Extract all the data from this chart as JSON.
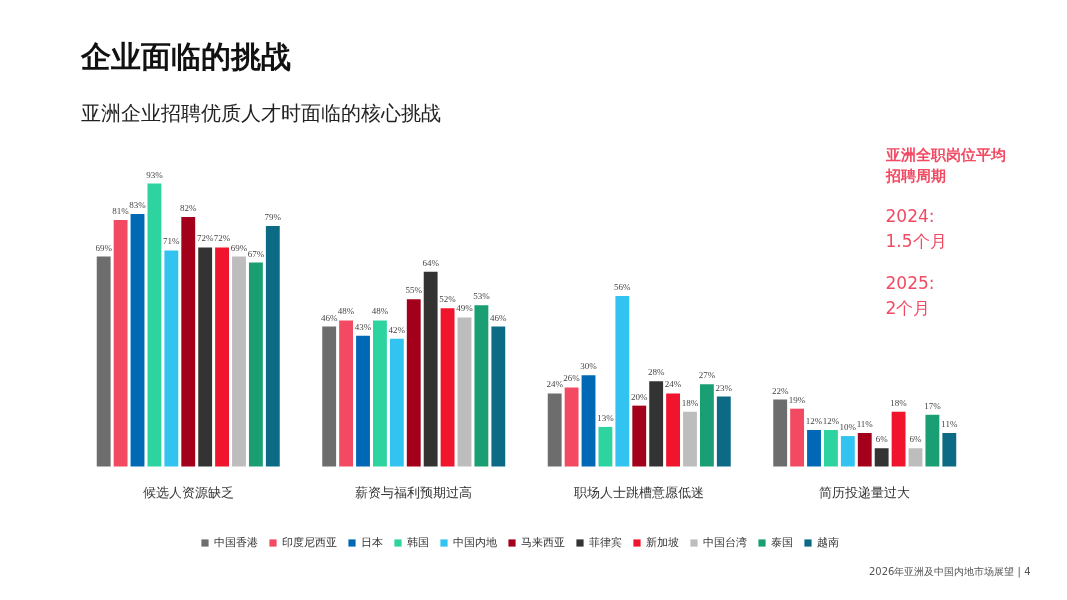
{
  "chart_data": {
    "type": "bar",
    "title": "企业面临的挑战",
    "subtitle": "亚洲企业招聘优质人才时面临的核心挑战",
    "categories": [
      "候选人资源缺乏",
      "薪资与福利预期过高",
      "职场人士跳槽意愿低迷",
      "简历投递量过大"
    ],
    "tick_labels": "x",
    "legend": "bottom",
    "series": [
      {
        "name": "中国香港",
        "color": "#6d6d6d",
        "values": [
          69,
          46,
          24,
          22
        ],
        "value_labels": [
          "69%",
          "46%",
          "24%",
          "22%"
        ]
      },
      {
        "name": "印度尼西亚",
        "color": "#f24a62",
        "values": [
          81,
          48,
          26,
          19
        ],
        "value_labels": [
          "81%",
          "48%",
          "26%",
          "19%"
        ]
      },
      {
        "name": "日本",
        "color": "#0068b5",
        "values": [
          83,
          43,
          30,
          12
        ],
        "value_labels": [
          "83%",
          "43%",
          "30%",
          "12%"
        ]
      },
      {
        "name": "韩国",
        "color": "#2dd4a0",
        "values": [
          93,
          48,
          13,
          12
        ],
        "value_labels": [
          "93%",
          "48%",
          "13%",
          "12%"
        ]
      },
      {
        "name": "中国内地",
        "color": "#33c3f0",
        "values": [
          71,
          42,
          56,
          10
        ],
        "value_labels": [
          "71%",
          "42%",
          "56%",
          "10%"
        ]
      },
      {
        "name": "马来西亚",
        "color": "#a3001b",
        "values": [
          82,
          55,
          20,
          11
        ],
        "value_labels": [
          "82%",
          "55%",
          "20%",
          "11%"
        ]
      },
      {
        "name": "菲律宾",
        "color": "#333333",
        "values": [
          72,
          64,
          28,
          6
        ],
        "value_labels": [
          "72%",
          "64%",
          "28%",
          "6%"
        ]
      },
      {
        "name": "新加坡",
        "color": "#f0142d",
        "values": [
          72,
          52,
          24,
          18
        ],
        "value_labels": [
          "72%",
          "52%",
          "24%",
          "18%"
        ]
      },
      {
        "name": "中国台湾",
        "color": "#bdbdbd",
        "values": [
          69,
          49,
          18,
          6
        ],
        "value_labels": [
          "69%",
          "49%",
          "18%",
          "6%"
        ]
      },
      {
        "name": "泰国",
        "color": "#1a9e74",
        "values": [
          67,
          53,
          27,
          17
        ],
        "value_labels": [
          "67%",
          "53%",
          "27%",
          "17%"
        ]
      },
      {
        "name": "越南",
        "color": "#0d6a85",
        "values": [
          79,
          46,
          23,
          11
        ],
        "value_labels": [
          "79%",
          "46%",
          "23%",
          "11%"
        ]
      }
    ],
    "annotations": [
      "亚洲全职岗位平均招聘周期",
      "2024:",
      "1.5个月",
      "2025:",
      "2个月",
      "2026年亚洲及中国内地市场展望 | 4"
    ]
  }
}
